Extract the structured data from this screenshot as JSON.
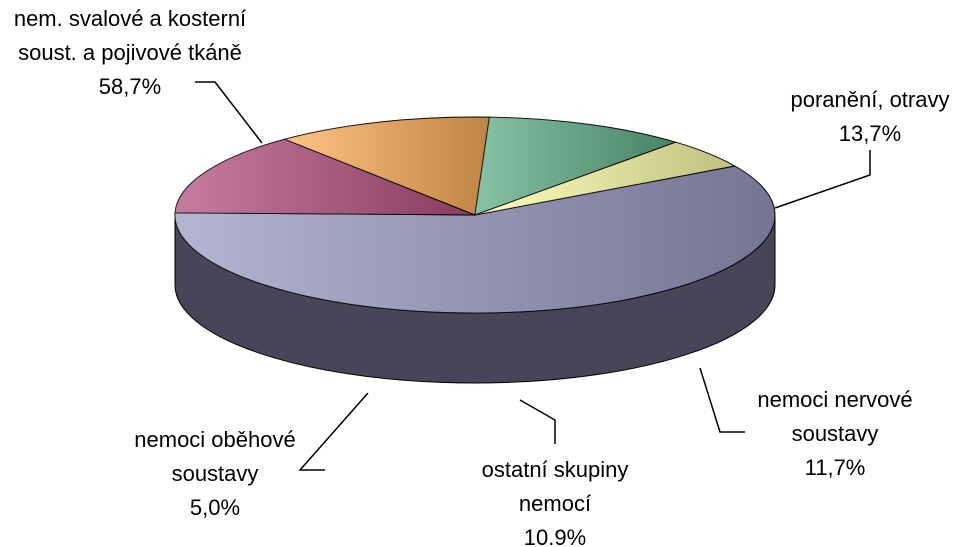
{
  "chart_data": {
    "type": "pie3d",
    "categories": [
      "nem. svalové a kosterní soust. a pojivové tkáně",
      "poranění, otravy",
      "nemoci nervové soustavy",
      "ostatní skupiny nemocí",
      "nemoci oběhové soustavy"
    ],
    "values": [
      58.7,
      13.7,
      11.7,
      10.9,
      5.0
    ],
    "value_labels": [
      "58,7%",
      "13,7%",
      "11,7%",
      "10.9%",
      "5,0%"
    ],
    "colors": [
      "#9c9cc4",
      "#b5507f",
      "#ffb05a",
      "#5fae88",
      "#ffffa8"
    ]
  }
}
